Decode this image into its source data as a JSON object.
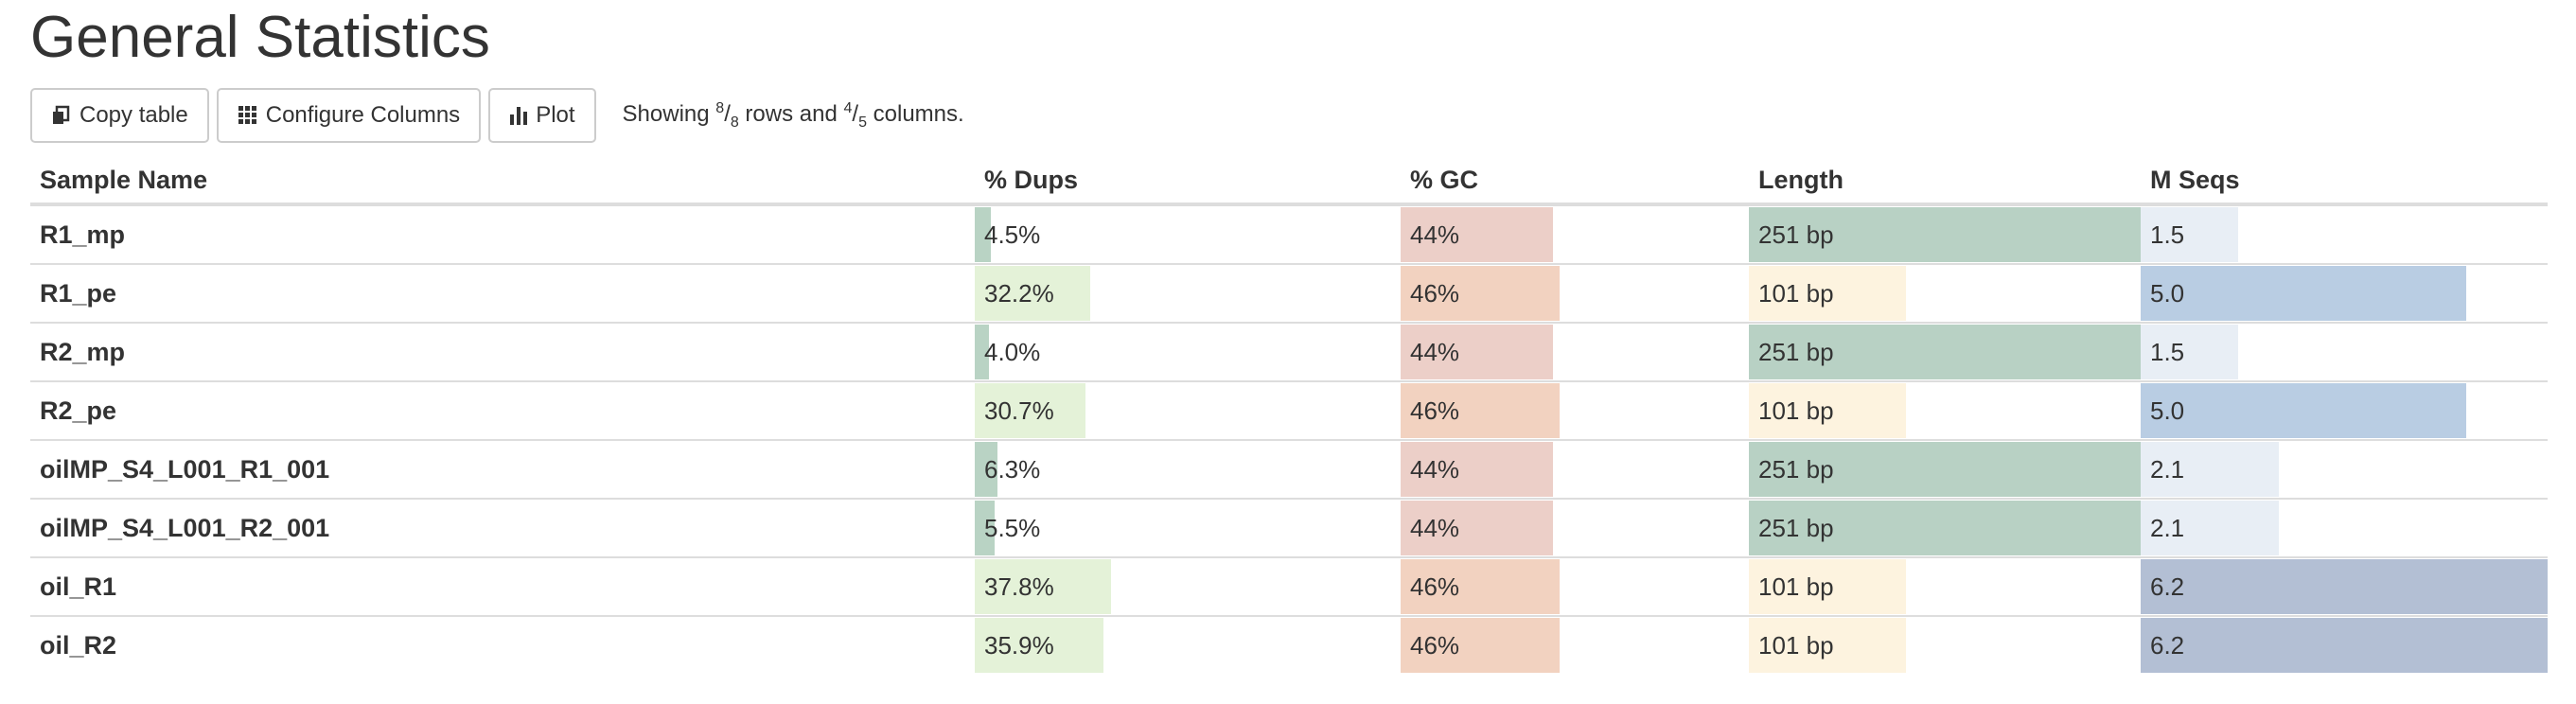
{
  "title": "General Statistics",
  "toolbar": {
    "copy_label": "Copy table",
    "configure_label": "Configure Columns",
    "plot_label": "Plot",
    "showing_prefix": "Showing ",
    "rows_shown": "8",
    "rows_total": "8",
    "rows_text": " rows and ",
    "cols_shown": "4",
    "cols_total": "5",
    "cols_text": " columns."
  },
  "columns": [
    "Sample Name",
    "% Dups",
    "% GC",
    "Length",
    "M Seqs"
  ],
  "colors": {
    "dups_low": "#b9d3c4",
    "dups_high": "#e4f2d8",
    "gc_44": "#eccfc8",
    "gc_46": "#f2d2c0",
    "len_251": "#b8d1c4",
    "len_101": "#fdf3df",
    "mseq_low": "#e8eef5",
    "mseq_mid": "#b9cde3",
    "mseq_high": "#b3bfd4"
  },
  "rows": [
    {
      "name": "R1_mp",
      "dups": "4.5%",
      "dups_frac": 0.045,
      "gc": "44%",
      "gc_frac": 0.44,
      "length": "251 bp",
      "len_frac": 1.0,
      "mseqs": "1.5",
      "mseqs_frac": 0.24
    },
    {
      "name": "R1_pe",
      "dups": "32.2%",
      "dups_frac": 0.322,
      "gc": "46%",
      "gc_frac": 0.46,
      "length": "101 bp",
      "len_frac": 0.4,
      "mseqs": "5.0",
      "mseqs_frac": 0.8
    },
    {
      "name": "R2_mp",
      "dups": "4.0%",
      "dups_frac": 0.04,
      "gc": "44%",
      "gc_frac": 0.44,
      "length": "251 bp",
      "len_frac": 1.0,
      "mseqs": "1.5",
      "mseqs_frac": 0.24
    },
    {
      "name": "R2_pe",
      "dups": "30.7%",
      "dups_frac": 0.307,
      "gc": "46%",
      "gc_frac": 0.46,
      "length": "101 bp",
      "len_frac": 0.4,
      "mseqs": "5.0",
      "mseqs_frac": 0.8
    },
    {
      "name": "oilMP_S4_L001_R1_001",
      "dups": "6.3%",
      "dups_frac": 0.063,
      "gc": "44%",
      "gc_frac": 0.44,
      "length": "251 bp",
      "len_frac": 1.0,
      "mseqs": "2.1",
      "mseqs_frac": 0.34
    },
    {
      "name": "oilMP_S4_L001_R2_001",
      "dups": "5.5%",
      "dups_frac": 0.055,
      "gc": "44%",
      "gc_frac": 0.44,
      "length": "251 bp",
      "len_frac": 1.0,
      "mseqs": "2.1",
      "mseqs_frac": 0.34
    },
    {
      "name": "oil_R1",
      "dups": "37.8%",
      "dups_frac": 0.378,
      "gc": "46%",
      "gc_frac": 0.46,
      "length": "101 bp",
      "len_frac": 0.4,
      "mseqs": "6.2",
      "mseqs_frac": 1.0
    },
    {
      "name": "oil_R2",
      "dups": "35.9%",
      "dups_frac": 0.359,
      "gc": "46%",
      "gc_frac": 0.46,
      "length": "101 bp",
      "len_frac": 0.4,
      "mseqs": "6.2",
      "mseqs_frac": 1.0
    }
  ]
}
